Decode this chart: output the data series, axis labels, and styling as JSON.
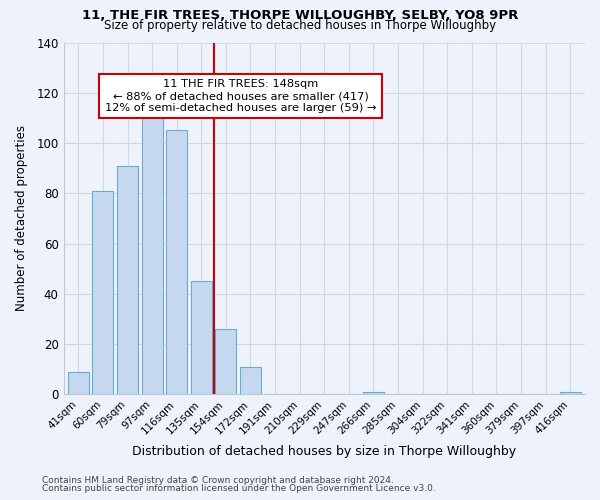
{
  "title": "11, THE FIR TREES, THORPE WILLOUGHBY, SELBY, YO8 9PR",
  "subtitle": "Size of property relative to detached houses in Thorpe Willoughby",
  "xlabel": "Distribution of detached houses by size in Thorpe Willoughby",
  "ylabel": "Number of detached properties",
  "bar_labels": [
    "41sqm",
    "60sqm",
    "79sqm",
    "97sqm",
    "116sqm",
    "135sqm",
    "154sqm",
    "172sqm",
    "191sqm",
    "210sqm",
    "229sqm",
    "247sqm",
    "266sqm",
    "285sqm",
    "304sqm",
    "322sqm",
    "341sqm",
    "360sqm",
    "379sqm",
    "397sqm",
    "416sqm"
  ],
  "bar_values": [
    9,
    81,
    91,
    110,
    105,
    45,
    26,
    11,
    0,
    0,
    0,
    0,
    1,
    0,
    0,
    0,
    0,
    0,
    0,
    0,
    1
  ],
  "bar_color": "#c5d8f0",
  "bar_edge_color": "#6aabcf",
  "vline_x": 6.0,
  "vline_color": "#cc0000",
  "ylim": [
    0,
    140
  ],
  "yticks": [
    0,
    20,
    40,
    60,
    80,
    100,
    120,
    140
  ],
  "annotation_title": "11 THE FIR TREES: 148sqm",
  "annotation_line1": "← 88% of detached houses are smaller (417)",
  "annotation_line2": "12% of semi-detached houses are larger (59) →",
  "footer1": "Contains HM Land Registry data © Crown copyright and database right 2024.",
  "footer2": "Contains public sector information licensed under the Open Government Licence v3.0.",
  "bg_color": "#eef2fa",
  "plot_bg_color": "#eef2fa",
  "grid_color": "#d0d8e8",
  "spine_color": "#c0c8d8"
}
